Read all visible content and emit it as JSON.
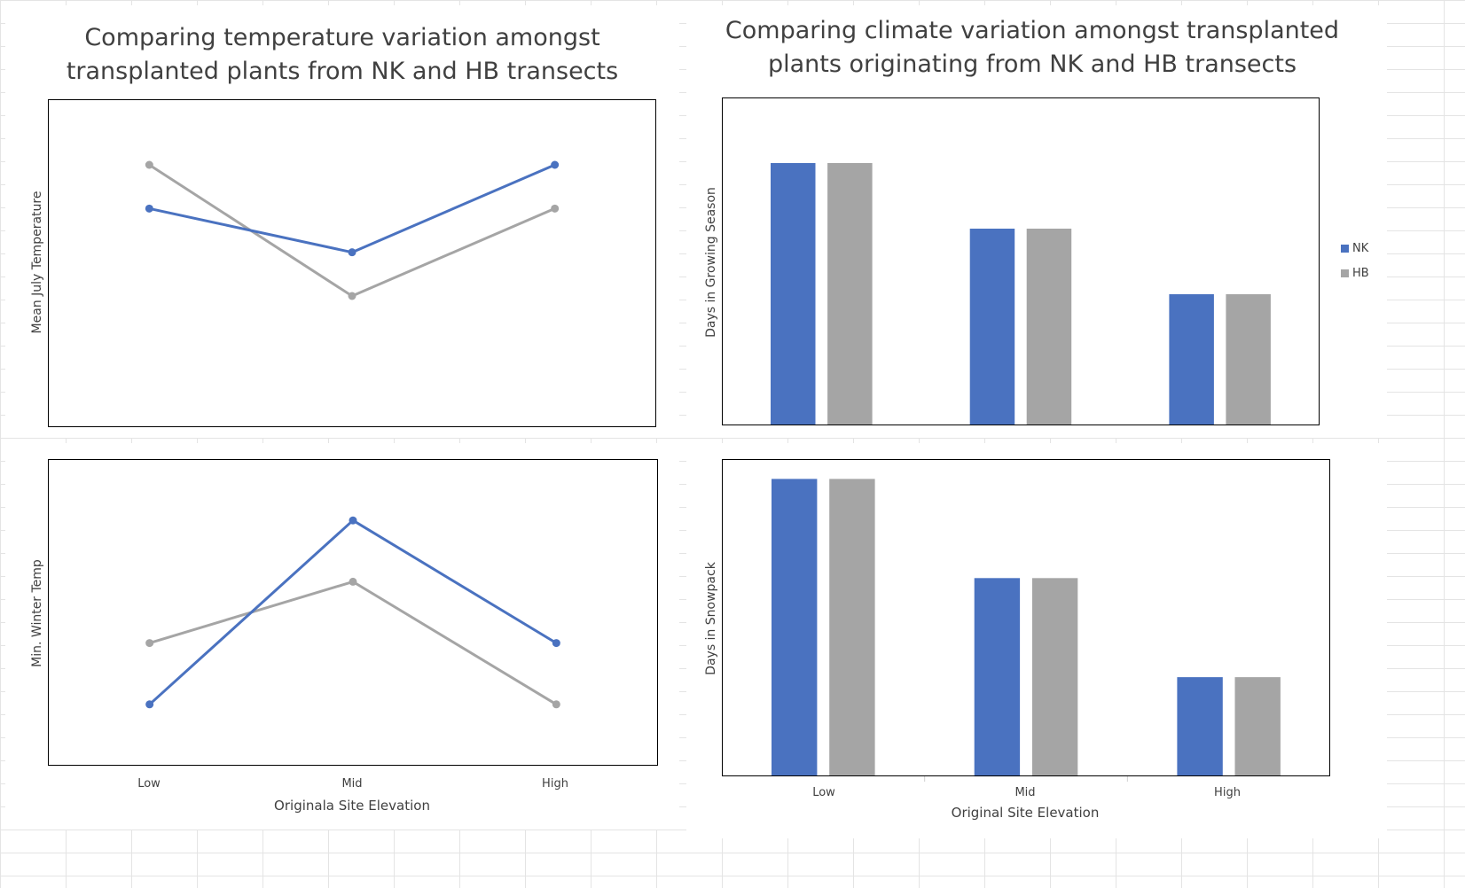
{
  "colors": {
    "NK": "#4a72c0",
    "HB": "#a5a5a5",
    "frame": "#000000",
    "text": "#404040"
  },
  "chart_data": [
    {
      "id": "july",
      "type": "line",
      "title": [
        "Comparing temperature variation amongst",
        "transplanted plants  from NK and HB transects"
      ],
      "ylabel": "Mean July Temperature",
      "xlabel": "",
      "categories": [
        "Low",
        "Mid",
        "High"
      ],
      "show_category_labels": false,
      "series": [
        {
          "name": "NK",
          "values": [
            3,
            2,
            4
          ]
        },
        {
          "name": "HB",
          "values": [
            4,
            1,
            3
          ]
        }
      ],
      "ylim": [
        -2,
        5.5
      ],
      "grid": false
    },
    {
      "id": "growing",
      "type": "bar",
      "title": [
        "Comparing climate variation amongst transplanted",
        "plants originating from NK and HB transects"
      ],
      "ylabel": "Days in Growing Season",
      "xlabel": "",
      "categories": [
        "Low",
        "Mid",
        "High"
      ],
      "show_category_labels": false,
      "series": [
        {
          "name": "NK",
          "values": [
            4,
            3,
            2
          ]
        },
        {
          "name": "HB",
          "values": [
            4,
            3,
            2
          ]
        }
      ],
      "ylim": [
        0,
        5
      ],
      "legend": {
        "position": "right",
        "entries": [
          "NK",
          "HB"
        ]
      },
      "grid": false
    },
    {
      "id": "winter",
      "type": "line",
      "title": [],
      "ylabel": "Min. Winter Temp",
      "xlabel": "Originala Site Elevation",
      "categories": [
        "Low",
        "Mid",
        "High"
      ],
      "show_category_labels": true,
      "series": [
        {
          "name": "NK",
          "values": [
            1,
            4,
            2
          ]
        },
        {
          "name": "HB",
          "values": [
            2,
            3,
            1
          ]
        }
      ],
      "ylim": [
        -0.0,
        5
      ],
      "grid": false
    },
    {
      "id": "snow",
      "type": "bar",
      "title": [],
      "ylabel": "Days in Snowpack",
      "xlabel": "Original Site Elevation",
      "categories": [
        "Low",
        "Mid",
        "High"
      ],
      "show_category_labels": true,
      "series": [
        {
          "name": "NK",
          "values": [
            3,
            2,
            1
          ]
        },
        {
          "name": "HB",
          "values": [
            3,
            2,
            1
          ]
        }
      ],
      "ylim": [
        0,
        3.2
      ],
      "grid": false
    }
  ]
}
